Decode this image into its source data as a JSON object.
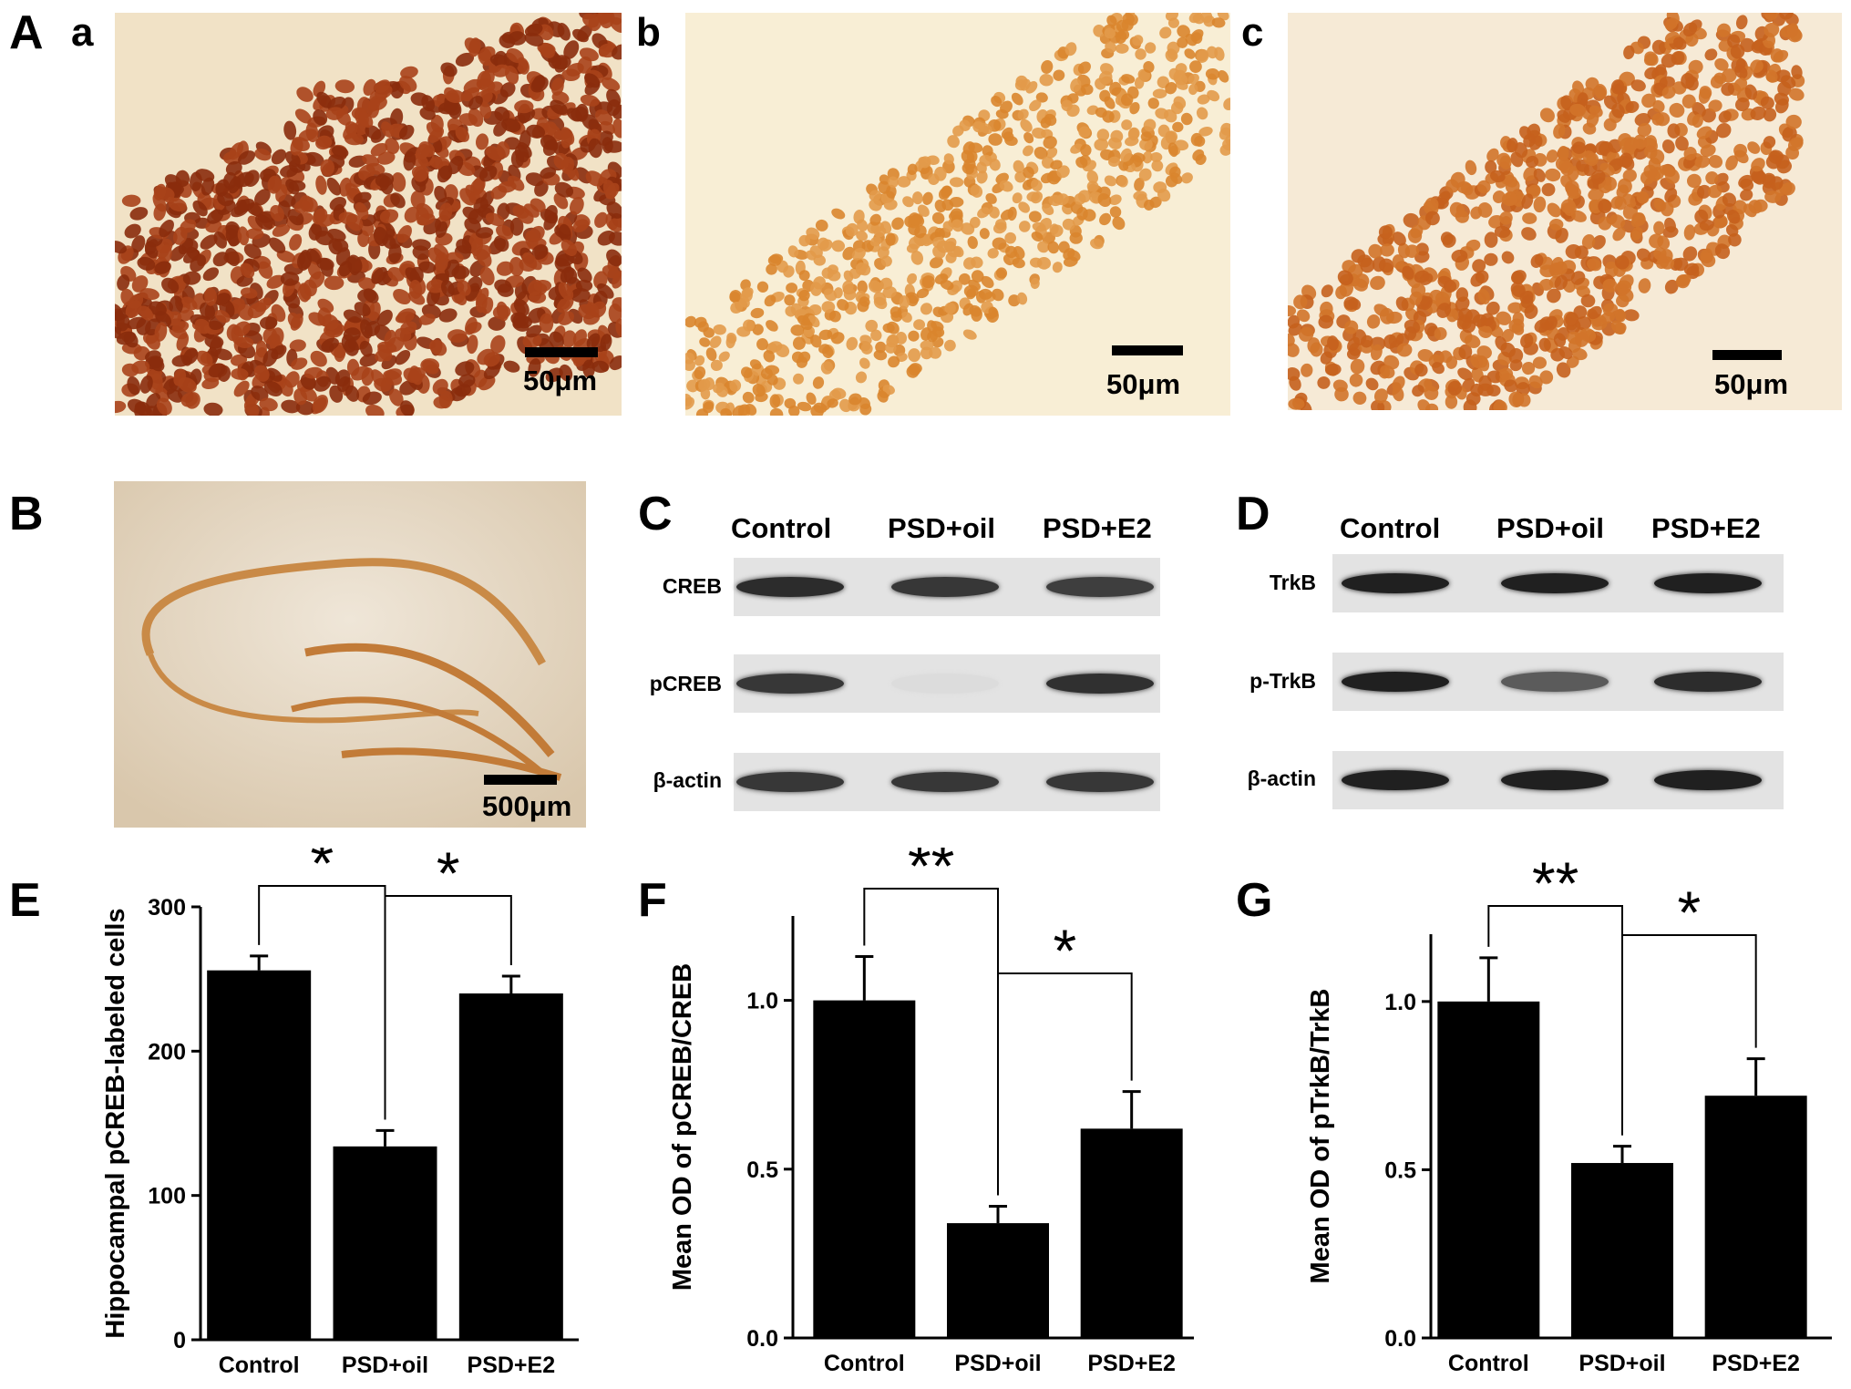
{
  "panels": {
    "A": "A",
    "a": "a",
    "b": "b",
    "c": "c",
    "B": "B",
    "C": "C",
    "D": "D",
    "E": "E",
    "F": "F",
    "G": "G"
  },
  "scale_bars": {
    "a": "50μm",
    "b": "50μm",
    "c": "50μm",
    "B": "500μm"
  },
  "blot_C": {
    "columns": [
      "Control",
      "PSD+oil",
      "PSD+E2"
    ],
    "rows": [
      {
        "label": "CREB",
        "intensity": [
          0.9,
          0.85,
          0.82
        ]
      },
      {
        "label": "pCREB",
        "intensity": [
          0.85,
          0.15,
          0.88
        ]
      },
      {
        "label": "β-actin",
        "intensity": [
          0.85,
          0.85,
          0.85
        ]
      }
    ]
  },
  "blot_D": {
    "columns": [
      "Control",
      "PSD+oil",
      "PSD+E2"
    ],
    "rows": [
      {
        "label": "TrkB",
        "intensity": [
          0.95,
          0.95,
          0.95
        ]
      },
      {
        "label": "p-TrkB",
        "intensity": [
          0.95,
          0.7,
          0.9
        ]
      },
      {
        "label": "β-actin",
        "intensity": [
          0.95,
          0.95,
          0.95
        ]
      }
    ]
  },
  "colors": {
    "bar": "#000000",
    "axis": "#000000",
    "stain_dark": "#8a2c0c",
    "stain_light": "#d9852e",
    "tissue_bg": "#f3e4c8"
  },
  "chart_data": [
    {
      "panel": "E",
      "type": "bar",
      "categories": [
        "Control",
        "PSD+oil",
        "PSD+E2"
      ],
      "values": [
        256,
        134,
        240
      ],
      "errors": [
        10,
        11,
        12
      ],
      "ylabel": "Hippocampal pCREB-labeled cells",
      "ylim": [
        0,
        300
      ],
      "yticks": [
        "0",
        "100",
        "200",
        "300"
      ],
      "significance": [
        {
          "between": [
            "Control",
            "PSD+oil"
          ],
          "label": "*"
        },
        {
          "between": [
            "PSD+oil",
            "PSD+E2"
          ],
          "label": "*"
        }
      ]
    },
    {
      "panel": "F",
      "type": "bar",
      "categories": [
        "Control",
        "PSD+oil",
        "PSD+E2"
      ],
      "values": [
        1.0,
        0.34,
        0.62
      ],
      "errors": [
        0.13,
        0.05,
        0.11
      ],
      "ylabel": "Mean OD of pCREB/CREB",
      "ylim": [
        0,
        1.25
      ],
      "yticks": [
        "0.0",
        "0.5",
        "1.0"
      ],
      "significance": [
        {
          "between": [
            "Control",
            "PSD+oil"
          ],
          "label": "**"
        },
        {
          "between": [
            "PSD+oil",
            "PSD+E2"
          ],
          "label": "*"
        }
      ]
    },
    {
      "panel": "G",
      "type": "bar",
      "categories": [
        "Control",
        "PSD+oil",
        "PSD+E2"
      ],
      "values": [
        1.0,
        0.52,
        0.72
      ],
      "errors": [
        0.13,
        0.05,
        0.11
      ],
      "ylabel": "Mean OD of pTrkB/TrkB",
      "ylim": [
        0,
        1.2
      ],
      "yticks": [
        "0.0",
        "0.5",
        "1.0"
      ],
      "significance": [
        {
          "between": [
            "Control",
            "PSD+oil"
          ],
          "label": "**"
        },
        {
          "between": [
            "PSD+oil",
            "PSD+E2"
          ],
          "label": "*"
        }
      ]
    }
  ]
}
